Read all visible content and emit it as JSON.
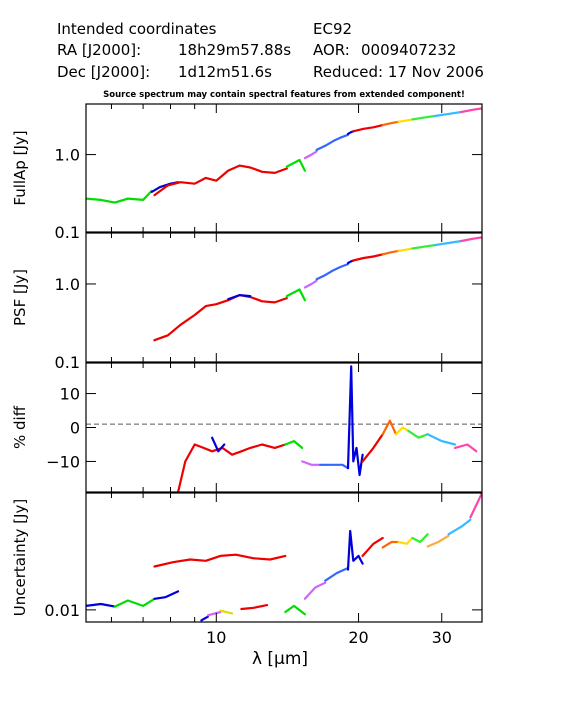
{
  "header": {
    "intended": "Intended coordinates",
    "ra_label": "RA  [J2000]:",
    "ra_value": "18h29m57.88s",
    "dec_label": "Dec [J2000]:",
    "dec_value": "1d12m51.6s",
    "target": "EC92",
    "aor_label": "AOR:",
    "aor_value": "0009407232",
    "reduced": "Reduced: 17 Nov 2006"
  },
  "note": "Source spectrum may contain spectral features from extended component!",
  "chart_data": [
    {
      "type": "line",
      "panel": "fullap",
      "ylabel": "FullAp [Jy]",
      "yscale": "log",
      "ylim": [
        0.1,
        4.5
      ],
      "xlim": [
        5.3,
        36.5
      ],
      "xscale": "log",
      "ytick_labels": [
        "0.1",
        "1.0"
      ],
      "ytick_values": [
        0.1,
        1.0
      ],
      "series": [
        {
          "color": "#00dd00",
          "x": [
            5.3,
            5.7,
            6.1,
            6.5,
            7.0,
            7.3
          ],
          "y": [
            0.27,
            0.26,
            0.24,
            0.27,
            0.26,
            0.34
          ]
        },
        {
          "color": "#0000dd",
          "x": [
            7.3,
            7.6,
            8.0,
            8.3
          ],
          "y": [
            0.33,
            0.38,
            0.42,
            0.44
          ]
        },
        {
          "color": "#ee0000",
          "x": [
            7.4,
            7.9,
            8.4,
            9.0,
            9.5,
            10.0,
            10.6,
            11.2,
            11.8,
            12.5,
            13.3,
            14.1
          ],
          "y": [
            0.3,
            0.4,
            0.44,
            0.42,
            0.5,
            0.46,
            0.62,
            0.72,
            0.68,
            0.6,
            0.58,
            0.66
          ]
        },
        {
          "color": "#00dd00",
          "x": [
            14.1,
            14.6,
            15.0,
            15.4
          ],
          "y": [
            0.7,
            0.78,
            0.85,
            0.62
          ]
        },
        {
          "color": "#cc66ff",
          "x": [
            15.4,
            15.9,
            16.3
          ],
          "y": [
            0.9,
            1.0,
            1.1
          ]
        },
        {
          "color": "#3366ff",
          "x": [
            16.3,
            17.0,
            17.7,
            18.3,
            19.0
          ],
          "y": [
            1.15,
            1.3,
            1.5,
            1.65,
            1.8
          ]
        },
        {
          "color": "#0000dd",
          "x": [
            19.0,
            19.3,
            19.5
          ],
          "y": [
            1.85,
            1.95,
            2.0
          ]
        },
        {
          "color": "#ee0000",
          "x": [
            19.5,
            20.5,
            21.5,
            22.5
          ],
          "y": [
            2.0,
            2.15,
            2.25,
            2.4
          ]
        },
        {
          "color": "#ff6600",
          "x": [
            22.5,
            23.5,
            24.3
          ],
          "y": [
            2.4,
            2.55,
            2.65
          ]
        },
        {
          "color": "#ffdd00",
          "x": [
            24.3,
            25.2,
            26.0
          ],
          "y": [
            2.65,
            2.75,
            2.85
          ]
        },
        {
          "color": "#33ee33",
          "x": [
            26.0,
            27.5,
            29.0
          ],
          "y": [
            2.85,
            3.0,
            3.15
          ]
        },
        {
          "color": "#33bbff",
          "x": [
            29.0,
            31.0,
            33.0
          ],
          "y": [
            3.15,
            3.35,
            3.55
          ]
        },
        {
          "color": "#ff44aa",
          "x": [
            33.0,
            35.0,
            36.5
          ],
          "y": [
            3.55,
            3.8,
            3.95
          ]
        }
      ]
    },
    {
      "type": "line",
      "panel": "psf",
      "ylabel": "PSF [Jy]",
      "yscale": "log",
      "ylim": [
        0.1,
        4.5
      ],
      "xlim": [
        5.3,
        36.5
      ],
      "xscale": "log",
      "ytick_labels": [
        "0.1",
        "1.0"
      ],
      "ytick_values": [
        0.1,
        1.0
      ],
      "series": [
        {
          "color": "#ee0000",
          "x": [
            7.4,
            7.9,
            8.4,
            9.0,
            9.5,
            10.0,
            10.6,
            11.2,
            11.8,
            12.5,
            13.3,
            14.1
          ],
          "y": [
            0.19,
            0.22,
            0.3,
            0.4,
            0.52,
            0.55,
            0.62,
            0.72,
            0.68,
            0.6,
            0.58,
            0.66
          ]
        },
        {
          "color": "#0000dd",
          "x": [
            10.6,
            11.2,
            11.8
          ],
          "y": [
            0.64,
            0.72,
            0.7
          ]
        },
        {
          "color": "#00dd00",
          "x": [
            14.1,
            14.6,
            15.0,
            15.4
          ],
          "y": [
            0.7,
            0.78,
            0.85,
            0.62
          ]
        },
        {
          "color": "#cc66ff",
          "x": [
            15.4,
            15.9,
            16.3
          ],
          "y": [
            0.9,
            1.0,
            1.1
          ]
        },
        {
          "color": "#3366ff",
          "x": [
            16.3,
            17.0,
            17.7,
            18.3,
            19.0
          ],
          "y": [
            1.15,
            1.3,
            1.5,
            1.65,
            1.8
          ]
        },
        {
          "color": "#0000dd",
          "x": [
            19.0,
            19.3,
            19.5
          ],
          "y": [
            1.85,
            1.95,
            2.0
          ]
        },
        {
          "color": "#ee0000",
          "x": [
            19.5,
            20.5,
            21.5,
            22.5
          ],
          "y": [
            2.0,
            2.15,
            2.25,
            2.4
          ]
        },
        {
          "color": "#ff6600",
          "x": [
            22.5,
            23.5,
            24.3
          ],
          "y": [
            2.4,
            2.55,
            2.65
          ]
        },
        {
          "color": "#ffdd00",
          "x": [
            24.3,
            25.2,
            26.0
          ],
          "y": [
            2.65,
            2.75,
            2.85
          ]
        },
        {
          "color": "#33ee33",
          "x": [
            26.0,
            27.5,
            29.0
          ],
          "y": [
            2.85,
            3.0,
            3.15
          ]
        },
        {
          "color": "#33bbff",
          "x": [
            29.0,
            31.0,
            33.0
          ],
          "y": [
            3.15,
            3.35,
            3.55
          ]
        },
        {
          "color": "#ff44aa",
          "x": [
            33.0,
            35.0,
            36.5
          ],
          "y": [
            3.55,
            3.8,
            3.95
          ]
        }
      ]
    },
    {
      "type": "line",
      "panel": "pdiff",
      "ylabel": "% diff",
      "yscale": "linear",
      "ylim": [
        -19,
        19
      ],
      "xlim": [
        5.3,
        36.5
      ],
      "xscale": "log",
      "ytick_labels": [
        "−10",
        "0",
        "10"
      ],
      "ytick_values": [
        -10,
        0,
        10
      ],
      "reference_line": 1,
      "series": [
        {
          "color": "#ee0000",
          "x": [
            8.3,
            8.6,
            9.0,
            9.4,
            9.8,
            10.3,
            10.8,
            11.3,
            11.8,
            12.5,
            13.3,
            14.0
          ],
          "y": [
            -19,
            -10,
            -5,
            -6,
            -7,
            -6,
            -8,
            -7,
            -6,
            -5,
            -6,
            -5
          ]
        },
        {
          "color": "#0000dd",
          "x": [
            9.8,
            10.1,
            10.4
          ],
          "y": [
            -3,
            -7,
            -5
          ]
        },
        {
          "color": "#00dd00",
          "x": [
            14.0,
            14.6,
            15.2
          ],
          "y": [
            -5,
            -4,
            -6
          ]
        },
        {
          "color": "#cc66ff",
          "x": [
            15.2,
            15.9,
            16.6
          ],
          "y": [
            -10,
            -11,
            -11
          ]
        },
        {
          "color": "#3366ff",
          "x": [
            16.6,
            17.5,
            18.5,
            19.0
          ],
          "y": [
            -11,
            -11,
            -11,
            -12
          ]
        },
        {
          "color": "#0000dd",
          "x": [
            19.0,
            19.3,
            19.5,
            19.8,
            20.1,
            20.4
          ],
          "y": [
            -12,
            18,
            -10,
            -6,
            -14,
            -8
          ]
        },
        {
          "color": "#ee0000",
          "x": [
            20.4,
            21.5,
            22.5
          ],
          "y": [
            -10,
            -6,
            -2
          ]
        },
        {
          "color": "#ff6600",
          "x": [
            22.5,
            23.3,
            24.0
          ],
          "y": [
            -2,
            2,
            -2
          ]
        },
        {
          "color": "#ffdd00",
          "x": [
            24.0,
            24.8,
            25.5
          ],
          "y": [
            -2,
            0,
            -1
          ]
        },
        {
          "color": "#33ee33",
          "x": [
            25.5,
            26.8,
            28.0
          ],
          "y": [
            -1,
            -3,
            -2
          ]
        },
        {
          "color": "#33bbff",
          "x": [
            28.0,
            30.0,
            32.0
          ],
          "y": [
            -2,
            -4,
            -5
          ]
        },
        {
          "color": "#ff44aa",
          "x": [
            32.0,
            34.0,
            35.5
          ],
          "y": [
            -6,
            -5,
            -7
          ]
        }
      ]
    },
    {
      "type": "line",
      "panel": "uncertainty",
      "ylabel": "Uncertainty [Jy]",
      "yscale": "log",
      "ylim": [
        0.0075,
        0.16
      ],
      "xlim": [
        5.3,
        36.5
      ],
      "xscale": "log",
      "xlabel": "λ [μm]",
      "xtick_labels": [
        "10",
        "20",
        "30"
      ],
      "xtick_values": [
        10,
        20,
        30
      ],
      "ytick_labels": [
        "0.01"
      ],
      "ytick_values": [
        0.01
      ],
      "series": [
        {
          "color": "#0000dd",
          "x": [
            5.3,
            5.7,
            6.1
          ],
          "y": [
            0.011,
            0.0115,
            0.0108
          ]
        },
        {
          "color": "#00dd00",
          "x": [
            6.1,
            6.5,
            7.0,
            7.4
          ],
          "y": [
            0.0108,
            0.0125,
            0.011,
            0.013
          ]
        },
        {
          "color": "#0000dd",
          "x": [
            7.4,
            7.8,
            8.3
          ],
          "y": [
            0.013,
            0.0135,
            0.0155
          ]
        },
        {
          "color": "#ee0000",
          "x": [
            7.4,
            8.1,
            8.8,
            9.5,
            10.2,
            11.0,
            12.0,
            13.0,
            14.0
          ],
          "y": [
            0.028,
            0.031,
            0.033,
            0.032,
            0.036,
            0.037,
            0.034,
            0.033,
            0.036
          ]
        },
        {
          "color": "#0000dd",
          "x": [
            9.3,
            9.6
          ],
          "y": [
            0.0078,
            0.0085
          ]
        },
        {
          "color": "#cc66ff",
          "x": [
            9.6,
            10.2
          ],
          "y": [
            0.0088,
            0.0095
          ]
        },
        {
          "color": "#dddd00",
          "x": [
            10.2,
            10.8
          ],
          "y": [
            0.0098,
            0.0092
          ]
        },
        {
          "color": "#ee0000",
          "x": [
            11.3,
            12.0,
            12.8
          ],
          "y": [
            0.0102,
            0.0105,
            0.0112
          ]
        },
        {
          "color": "#00dd00",
          "x": [
            14.0,
            14.6,
            15.4
          ],
          "y": [
            0.0095,
            0.011,
            0.009
          ]
        },
        {
          "color": "#cc66ff",
          "x": [
            15.4,
            16.2,
            17.0
          ],
          "y": [
            0.013,
            0.017,
            0.019
          ]
        },
        {
          "color": "#3366ff",
          "x": [
            17.0,
            18.0,
            19.0
          ],
          "y": [
            0.02,
            0.024,
            0.027
          ]
        },
        {
          "color": "#0000dd",
          "x": [
            19.0,
            19.2,
            19.5,
            20.0,
            20.4
          ],
          "y": [
            0.026,
            0.065,
            0.032,
            0.036,
            0.03
          ]
        },
        {
          "color": "#ee0000",
          "x": [
            20.4,
            21.5,
            22.5
          ],
          "y": [
            0.036,
            0.048,
            0.055
          ]
        },
        {
          "color": "#ff6600",
          "x": [
            22.5,
            23.5,
            24.3
          ],
          "y": [
            0.044,
            0.05,
            0.05
          ]
        },
        {
          "color": "#ffdd00",
          "x": [
            24.3,
            25.3,
            26.0
          ],
          "y": [
            0.05,
            0.048,
            0.055
          ]
        },
        {
          "color": "#33ee33",
          "x": [
            26.0,
            27.0,
            28.0
          ],
          "y": [
            0.055,
            0.05,
            0.06
          ]
        },
        {
          "color": "#ffaa44",
          "x": [
            28.0,
            29.5,
            31.0
          ],
          "y": [
            0.045,
            0.05,
            0.058
          ]
        },
        {
          "color": "#33bbff",
          "x": [
            31.0,
            33.0,
            34.5
          ],
          "y": [
            0.06,
            0.072,
            0.085
          ]
        },
        {
          "color": "#ff44aa",
          "x": [
            34.5,
            35.5,
            36.5
          ],
          "y": [
            0.09,
            0.12,
            0.16
          ]
        }
      ]
    }
  ]
}
